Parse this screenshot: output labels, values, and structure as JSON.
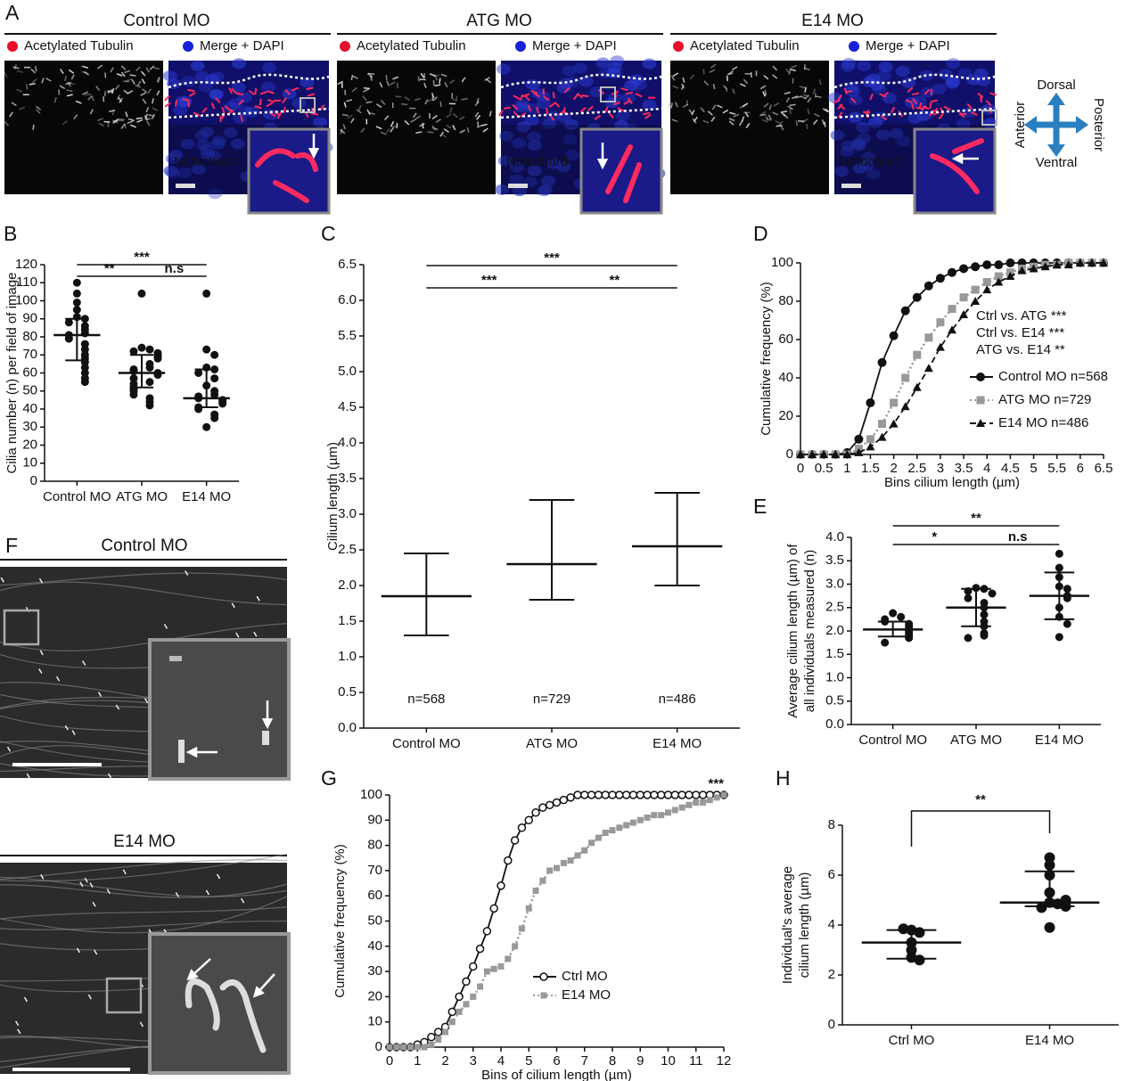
{
  "panel_a": {
    "label": "A",
    "groups": [
      {
        "title": "Control MO",
        "legend": [
          "Acetylated Tubulin",
          "Merge + DAPI"
        ],
        "note": "Notochord"
      },
      {
        "title": "ATG MO",
        "legend": [
          "Acetylated Tubulin",
          "Merge + DAPI"
        ],
        "note": "Notochord"
      },
      {
        "title": "E14 MO",
        "legend": [
          "Acetylated Tubulin",
          "Merge + DAPI"
        ],
        "note": "Notochord"
      }
    ],
    "compass": {
      "up": "Dorsal",
      "down": "Ventral",
      "left": "Anterior",
      "right": "Posterior"
    }
  },
  "panel_f": {
    "label": "F",
    "images": [
      {
        "title": "Control MO"
      },
      {
        "title": "E14 MO"
      }
    ]
  },
  "chart_data": [
    {
      "type": "dotplot",
      "panel_label": "B",
      "y_label": [
        "Cilia number (n) per field of image"
      ],
      "categories": [
        "Control MO",
        "ATG MO",
        "E14 MO"
      ],
      "points": [
        [
          110,
          104,
          99,
          95,
          91,
          90,
          88,
          86,
          84,
          82,
          81,
          79,
          76,
          73,
          70,
          68,
          66,
          63,
          60,
          57,
          55
        ],
        [
          104,
          74,
          73,
          72,
          71,
          70,
          69,
          68,
          65,
          63,
          62,
          61,
          60,
          59,
          57,
          55,
          54,
          52,
          51,
          50,
          48,
          46,
          44,
          42
        ],
        [
          104,
          73,
          70,
          63,
          62,
          60,
          57,
          53,
          50,
          48,
          47,
          46,
          45,
          44,
          43,
          41,
          40,
          37,
          35,
          30
        ]
      ],
      "median": [
        81,
        60,
        46
      ],
      "error": [
        [
          67,
          90
        ],
        [
          52,
          70
        ],
        [
          41,
          62
        ]
      ],
      "brackets": [
        {
          "from": 0,
          "to": 2,
          "label": "***"
        },
        {
          "from": 0,
          "to": 1,
          "label": "**"
        },
        {
          "from": 1,
          "to": 2,
          "label": "n.s"
        }
      ],
      "ylim": [
        0,
        120
      ],
      "yticks": [
        0,
        10,
        20,
        30,
        40,
        50,
        60,
        70,
        80,
        90,
        100,
        110,
        120
      ],
      "color": "#111111"
    },
    {
      "type": "dotplot",
      "panel_label": "C",
      "y_label": [
        "Cilium length (µm)"
      ],
      "categories": [
        "Control MO",
        "ATG MO",
        "E14 MO"
      ],
      "median": [
        1.85,
        2.3,
        2.55
      ],
      "error": [
        [
          1.3,
          2.45
        ],
        [
          1.8,
          3.2
        ],
        [
          2.0,
          3.3
        ]
      ],
      "n_labels": [
        "n=568",
        "n=729",
        "n=486"
      ],
      "brackets": [
        {
          "from": 0,
          "to": 2,
          "label": "***"
        },
        {
          "from": 0,
          "to": 1,
          "label": "***"
        },
        {
          "from": 1,
          "to": 2,
          "label": "**"
        }
      ],
      "ylim": [
        0,
        6.5
      ],
      "yticks": [
        {
          "value": 0,
          "label": "0.0"
        },
        0.5,
        {
          "value": 1,
          "label": "1.0"
        },
        1.5,
        {
          "value": 2,
          "label": "2.0"
        },
        2.5,
        {
          "value": 3,
          "label": "3.0"
        },
        3.5,
        {
          "value": 4,
          "label": "4.0"
        },
        4.5,
        {
          "value": 5,
          "label": "5.0"
        },
        5.5,
        {
          "value": 6,
          "label": "6.0"
        },
        6.5
      ],
      "color": "#111111"
    },
    {
      "type": "line",
      "panel_label": "D",
      "y_label": [
        "Cumulative frequency (%)"
      ],
      "x_label": "Bins cilium length (µm)",
      "x": [
        0,
        0.25,
        0.5,
        0.75,
        1,
        1.25,
        1.5,
        1.75,
        2,
        2.25,
        2.5,
        2.75,
        3,
        3.25,
        3.5,
        3.75,
        4,
        4.25,
        4.5,
        4.75,
        5,
        5.25,
        5.5,
        5.75,
        6,
        6.25,
        6.5
      ],
      "series": [
        {
          "name": "Control MO n=568",
          "color": "#111111",
          "marker": "circle",
          "dash": "solid",
          "values": [
            0,
            0,
            0,
            0,
            1,
            8,
            27,
            48,
            62,
            75,
            82,
            88,
            92,
            95,
            97,
            98,
            99,
            99,
            100,
            100,
            100,
            100,
            100,
            100,
            100,
            100,
            100
          ]
        },
        {
          "name": "ATG MO n=729",
          "color": "#999999",
          "marker": "square",
          "dash": "dotted",
          "values": [
            0,
            0,
            0,
            0,
            0,
            3,
            8,
            16,
            27,
            40,
            52,
            61,
            69,
            76,
            82,
            86,
            90,
            93,
            95,
            97,
            98,
            99,
            99,
            100,
            100,
            100,
            100
          ]
        },
        {
          "name": "E14 MO n=486",
          "color": "#111111",
          "marker": "triangle",
          "dash": "dashed",
          "values": [
            0,
            0,
            0,
            0,
            0,
            1,
            4,
            9,
            16,
            25,
            35,
            45,
            56,
            65,
            73,
            80,
            86,
            90,
            93,
            96,
            97,
            98,
            99,
            99,
            100,
            100,
            100
          ]
        }
      ],
      "annotations": [
        "Ctrl vs. ATG ***",
        "Ctrl vs. E14 ***",
        "ATG vs. E14 **"
      ],
      "xlim": [
        0,
        6.5
      ],
      "xticks": [
        0,
        0.5,
        1,
        1.5,
        2,
        2.5,
        3,
        3.5,
        4,
        4.5,
        5,
        5.5,
        6,
        6.5
      ],
      "ylim": [
        0,
        100
      ],
      "yticks": [
        0,
        20,
        40,
        60,
        80,
        100
      ]
    },
    {
      "type": "dotplot",
      "panel_label": "E",
      "y_label": [
        "Average cilium length (µm) of",
        "all individuals measured (n)"
      ],
      "categories": [
        "Control MO",
        "ATG MO",
        "E14 MO"
      ],
      "points": [
        [
          2.38,
          2.3,
          2.25,
          2.2,
          2.15,
          2.1,
          2.05,
          2.0,
          1.95,
          1.9,
          1.85,
          1.75
        ],
        [
          2.92,
          2.9,
          2.85,
          2.8,
          2.7,
          2.6,
          2.5,
          2.35,
          2.2,
          2.1,
          1.95,
          1.9,
          1.85
        ],
        [
          3.65,
          3.35,
          3.15,
          2.95,
          2.9,
          2.75,
          2.7,
          2.5,
          2.3,
          2.15,
          1.87
        ]
      ],
      "median": [
        2.03,
        2.5,
        2.75
      ],
      "error": [
        [
          1.88,
          2.2
        ],
        [
          2.1,
          2.9
        ],
        [
          2.25,
          3.25
        ]
      ],
      "brackets": [
        {
          "from": 0,
          "to": 2,
          "label": "**"
        },
        {
          "from": 0,
          "to": 1,
          "label": "*"
        },
        {
          "from": 1,
          "to": 2,
          "label": "n.s"
        }
      ],
      "ylim": [
        0,
        4
      ],
      "yticks": [
        {
          "value": 0,
          "label": "0.0"
        },
        0.5,
        {
          "value": 1,
          "label": "1.0"
        },
        1.5,
        {
          "value": 2,
          "label": "2.0"
        },
        2.5,
        {
          "value": 3,
          "label": "3.0"
        },
        3.5,
        {
          "value": 4,
          "label": "4.0"
        }
      ],
      "color": "#111111"
    },
    {
      "type": "line",
      "panel_label": "G",
      "y_label": [
        "Cumulative frequency (%)"
      ],
      "x_label": "Bins of cilium length (µm)",
      "x": [
        0,
        0.25,
        0.5,
        0.75,
        1,
        1.25,
        1.5,
        1.75,
        2,
        2.25,
        2.5,
        2.75,
        3,
        3.25,
        3.5,
        3.75,
        4,
        4.25,
        4.5,
        4.75,
        5,
        5.25,
        5.5,
        5.75,
        6,
        6.25,
        6.5,
        6.75,
        7,
        7.25,
        7.5,
        7.75,
        8,
        8.25,
        8.5,
        8.75,
        9,
        9.25,
        9.5,
        9.75,
        10,
        10.25,
        10.5,
        10.75,
        11,
        11.25,
        11.5,
        11.75,
        12
      ],
      "series": [
        {
          "name": "Ctrl MO",
          "color": "#111111",
          "marker": "open-circle",
          "dash": "solid",
          "values": [
            0,
            0,
            0,
            0,
            1,
            2,
            4,
            6,
            8,
            14,
            20,
            26,
            32,
            39,
            46,
            55,
            64,
            74,
            82,
            87,
            90,
            93,
            95,
            96,
            97,
            98,
            99,
            100,
            100,
            100,
            100,
            100,
            100,
            100,
            100,
            100,
            100,
            100,
            100,
            100,
            100,
            100,
            100,
            100,
            100,
            100,
            100,
            100,
            100
          ]
        },
        {
          "name": "E14 MO",
          "color": "#999999",
          "marker": "square",
          "dash": "dotted",
          "values": [
            0,
            0,
            0,
            0,
            0,
            0,
            1,
            3,
            6,
            10,
            14,
            17,
            20,
            24,
            30,
            31,
            32,
            35,
            40,
            47,
            55,
            62,
            66,
            70,
            71,
            73,
            74,
            76,
            78,
            81,
            83,
            85,
            86,
            87,
            88,
            89,
            90,
            91,
            92,
            92,
            93,
            94,
            95,
            96,
            97,
            97,
            98,
            99,
            100
          ]
        }
      ],
      "annotations": [
        "***"
      ],
      "xlim": [
        0,
        12
      ],
      "xticks": [
        0,
        1,
        2,
        3,
        4,
        5,
        6,
        7,
        8,
        9,
        10,
        11,
        12
      ],
      "ylim": [
        0,
        100
      ],
      "yticks": [
        0,
        10,
        20,
        30,
        40,
        50,
        60,
        70,
        80,
        90,
        100
      ]
    },
    {
      "type": "dotplot",
      "panel_label": "H",
      "y_label": [
        "Individual's average",
        "cilium length (µm)"
      ],
      "categories": [
        "Ctrl MO",
        "E14 MO"
      ],
      "points": [
        [
          3.8,
          3.7,
          3.3,
          3.0,
          2.7,
          2.6,
          3.85
        ],
        [
          6.7,
          6.4,
          6.0,
          5.3,
          4.9,
          4.85,
          4.7,
          4.75,
          3.9,
          5.0
        ]
      ],
      "median": [
        3.3,
        4.9
      ],
      "error": [
        [
          2.65,
          3.8
        ],
        [
          4.75,
          6.15
        ]
      ],
      "brackets": [
        {
          "from": 0,
          "to": 1,
          "label": "**"
        }
      ],
      "ylim": [
        0,
        8
      ],
      "yticks": [
        0,
        2,
        4,
        6,
        8
      ],
      "color": "#111111"
    }
  ]
}
